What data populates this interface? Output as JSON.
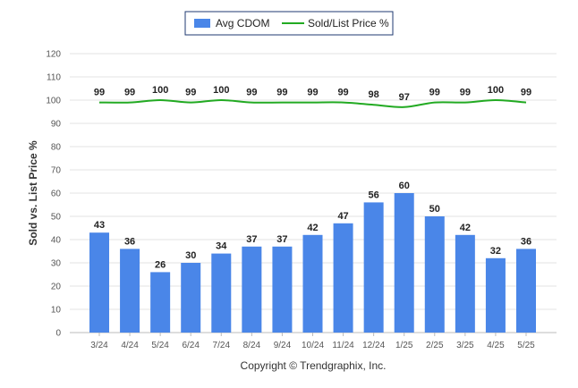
{
  "chart_data": {
    "type": "bar",
    "categories": [
      "3/24",
      "4/24",
      "5/24",
      "6/24",
      "7/24",
      "8/24",
      "9/24",
      "10/24",
      "11/24",
      "12/24",
      "1/25",
      "2/25",
      "3/25",
      "4/25",
      "5/25"
    ],
    "series": [
      {
        "name": "Avg CDOM",
        "type": "bar",
        "color": "#4a86e8",
        "values": [
          43,
          36,
          26,
          30,
          34,
          37,
          37,
          42,
          47,
          56,
          60,
          50,
          42,
          32,
          36
        ]
      },
      {
        "name": "Sold/List Price %",
        "type": "line",
        "color": "#22aa22",
        "values": [
          99,
          99,
          100,
          99,
          100,
          99,
          99,
          99,
          99,
          98,
          97,
          99,
          99,
          100,
          99
        ]
      }
    ],
    "ylabel": "Sold vs. List Price %",
    "ylim": [
      0,
      120
    ],
    "yticks": [
      0,
      10,
      20,
      30,
      40,
      50,
      60,
      70,
      80,
      90,
      100,
      110,
      120
    ],
    "grid": true,
    "legend_position": "top-center",
    "copyright": "Copyright © Trendgraphix, Inc."
  }
}
